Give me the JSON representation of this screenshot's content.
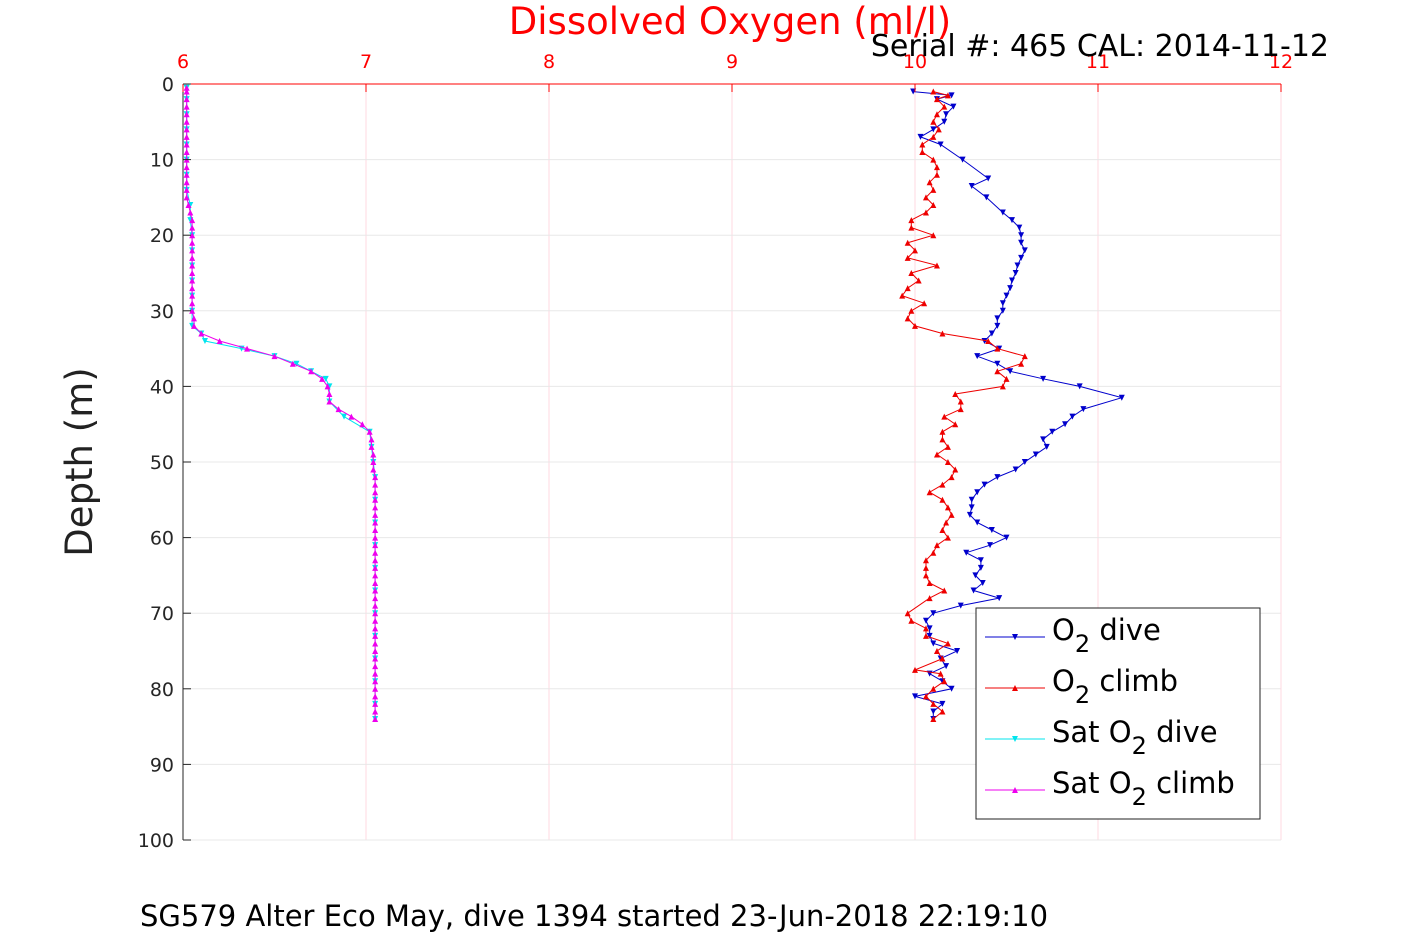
{
  "chart_data": {
    "type": "line",
    "title": "Dissolved Oxygen (ml/l)",
    "subtitle": "Serial #: 465  CAL: 2014-11-12",
    "caption": "SG579 Alter Eco May, dive 1394 started 23-Jun-2018 22:19:10",
    "ylabel": "Depth (m)",
    "xlim": [
      6,
      12
    ],
    "ylim": [
      0,
      100
    ],
    "y_reversed": true,
    "x_axis_position": "top",
    "xticks": [
      "6",
      "7",
      "8",
      "9",
      "10",
      "11",
      "12"
    ],
    "yticks": [
      "0",
      "10",
      "20",
      "30",
      "40",
      "50",
      "60",
      "70",
      "80",
      "90",
      "100"
    ],
    "grid": true,
    "legend_position": "bottom-right",
    "colors": {
      "title": "#ff0000",
      "x_axis": "#ff0000",
      "grid": "#e8e8e8",
      "grid_x": "#ffd8e0"
    },
    "series": [
      {
        "name": "O2 dive",
        "legend": {
          "prefix": "O",
          "sub": "2",
          "suffix": " dive"
        },
        "color": "#0000cc",
        "marker": "triangle-down",
        "points": [
          [
            9.99,
            1
          ],
          [
            10.2,
            1.5
          ],
          [
            10.12,
            2
          ],
          [
            10.21,
            3
          ],
          [
            10.17,
            4
          ],
          [
            10.16,
            5
          ],
          [
            10.1,
            6
          ],
          [
            10.03,
            7
          ],
          [
            10.14,
            8
          ],
          [
            10.26,
            10
          ],
          [
            10.4,
            12.5
          ],
          [
            10.31,
            13.5
          ],
          [
            10.39,
            15
          ],
          [
            10.48,
            17
          ],
          [
            10.53,
            18
          ],
          [
            10.57,
            19
          ],
          [
            10.58,
            20
          ],
          [
            10.58,
            21
          ],
          [
            10.6,
            22
          ],
          [
            10.58,
            23
          ],
          [
            10.56,
            24
          ],
          [
            10.55,
            25
          ],
          [
            10.53,
            26
          ],
          [
            10.52,
            27
          ],
          [
            10.5,
            28
          ],
          [
            10.48,
            29
          ],
          [
            10.48,
            30
          ],
          [
            10.45,
            31
          ],
          [
            10.45,
            32
          ],
          [
            10.42,
            33
          ],
          [
            10.38,
            34
          ],
          [
            10.46,
            35
          ],
          [
            10.34,
            36
          ],
          [
            10.45,
            37
          ],
          [
            10.52,
            38
          ],
          [
            10.7,
            39
          ],
          [
            10.9,
            40
          ],
          [
            11.13,
            41.5
          ],
          [
            10.92,
            43
          ],
          [
            10.86,
            44
          ],
          [
            10.82,
            45
          ],
          [
            10.75,
            46
          ],
          [
            10.7,
            47
          ],
          [
            10.72,
            48
          ],
          [
            10.66,
            49
          ],
          [
            10.6,
            50
          ],
          [
            10.55,
            51
          ],
          [
            10.45,
            52
          ],
          [
            10.38,
            53
          ],
          [
            10.34,
            54
          ],
          [
            10.31,
            55
          ],
          [
            10.31,
            56
          ],
          [
            10.3,
            57
          ],
          [
            10.34,
            58
          ],
          [
            10.42,
            59
          ],
          [
            10.5,
            60
          ],
          [
            10.41,
            61
          ],
          [
            10.28,
            62
          ],
          [
            10.36,
            63
          ],
          [
            10.36,
            64
          ],
          [
            10.33,
            65
          ],
          [
            10.37,
            66
          ],
          [
            10.32,
            67
          ],
          [
            10.46,
            68
          ],
          [
            10.25,
            69
          ],
          [
            10.1,
            70
          ],
          [
            10.06,
            71
          ],
          [
            10.08,
            72
          ],
          [
            10.08,
            73
          ],
          [
            10.1,
            74
          ],
          [
            10.23,
            75
          ],
          [
            10.14,
            76
          ],
          [
            10.17,
            77
          ],
          [
            10.08,
            78
          ],
          [
            10.15,
            79
          ],
          [
            10.2,
            80
          ],
          [
            10.0,
            81
          ],
          [
            10.15,
            82
          ],
          [
            10.1,
            83
          ],
          [
            10.1,
            84
          ]
        ]
      },
      {
        "name": "O2 climb",
        "legend": {
          "prefix": "O",
          "sub": "2",
          "suffix": " climb"
        },
        "color": "#ee0000",
        "marker": "triangle-up",
        "points": [
          [
            10.1,
            84
          ],
          [
            10.15,
            83
          ],
          [
            10.1,
            82
          ],
          [
            10.06,
            81
          ],
          [
            10.1,
            80
          ],
          [
            10.16,
            79
          ],
          [
            10.14,
            78
          ],
          [
            10.0,
            77.5
          ],
          [
            10.15,
            76
          ],
          [
            10.12,
            75
          ],
          [
            10.18,
            74
          ],
          [
            10.06,
            73
          ],
          [
            10.06,
            72
          ],
          [
            9.98,
            71
          ],
          [
            9.96,
            70
          ],
          [
            10.08,
            68
          ],
          [
            10.16,
            67
          ],
          [
            10.08,
            66
          ],
          [
            10.06,
            65
          ],
          [
            10.06,
            64
          ],
          [
            10.06,
            63
          ],
          [
            10.1,
            62
          ],
          [
            10.12,
            61
          ],
          [
            10.18,
            60
          ],
          [
            10.15,
            59
          ],
          [
            10.17,
            58
          ],
          [
            10.2,
            57
          ],
          [
            10.18,
            56
          ],
          [
            10.15,
            55
          ],
          [
            10.08,
            54
          ],
          [
            10.15,
            53
          ],
          [
            10.2,
            52
          ],
          [
            10.22,
            51
          ],
          [
            10.18,
            50
          ],
          [
            10.12,
            49
          ],
          [
            10.18,
            48
          ],
          [
            10.15,
            47
          ],
          [
            10.15,
            46
          ],
          [
            10.22,
            45
          ],
          [
            10.16,
            44
          ],
          [
            10.25,
            43
          ],
          [
            10.25,
            42
          ],
          [
            10.22,
            41
          ],
          [
            10.48,
            40
          ],
          [
            10.5,
            39
          ],
          [
            10.45,
            38
          ],
          [
            10.58,
            37
          ],
          [
            10.6,
            36
          ],
          [
            10.45,
            35
          ],
          [
            10.4,
            34
          ],
          [
            10.15,
            33
          ],
          [
            10.0,
            32
          ],
          [
            9.96,
            31
          ],
          [
            9.98,
            30
          ],
          [
            10.05,
            29
          ],
          [
            9.93,
            28
          ],
          [
            9.96,
            27
          ],
          [
            10.02,
            26
          ],
          [
            9.98,
            25
          ],
          [
            10.12,
            24
          ],
          [
            9.96,
            23
          ],
          [
            10.0,
            22
          ],
          [
            9.96,
            21
          ],
          [
            10.1,
            20
          ],
          [
            9.98,
            19
          ],
          [
            9.98,
            18
          ],
          [
            10.06,
            17
          ],
          [
            10.1,
            16
          ],
          [
            10.06,
            15
          ],
          [
            10.1,
            14
          ],
          [
            10.08,
            13
          ],
          [
            10.12,
            12
          ],
          [
            10.12,
            11
          ],
          [
            10.1,
            10
          ],
          [
            10.04,
            9
          ],
          [
            10.04,
            8
          ],
          [
            10.1,
            7
          ],
          [
            10.13,
            6
          ],
          [
            10.1,
            5
          ],
          [
            10.12,
            4
          ],
          [
            10.16,
            3
          ],
          [
            10.12,
            2
          ],
          [
            10.18,
            1.5
          ],
          [
            10.1,
            1
          ]
        ]
      },
      {
        "name": "Sat O2 dive",
        "legend": {
          "prefix": "Sat O",
          "sub": "2",
          "suffix": " dive"
        },
        "color": "#00e5ee",
        "marker": "triangle-down",
        "points": [
          [
            6.02,
            0.5
          ],
          [
            6.02,
            2
          ],
          [
            6.02,
            4
          ],
          [
            6.02,
            6
          ],
          [
            6.02,
            8
          ],
          [
            6.02,
            10
          ],
          [
            6.02,
            12
          ],
          [
            6.02,
            14
          ],
          [
            6.04,
            16
          ],
          [
            6.04,
            18
          ],
          [
            6.05,
            20
          ],
          [
            6.05,
            22
          ],
          [
            6.05,
            24
          ],
          [
            6.05,
            26
          ],
          [
            6.05,
            28
          ],
          [
            6.05,
            30
          ],
          [
            6.05,
            32
          ],
          [
            6.1,
            33
          ],
          [
            6.12,
            34
          ],
          [
            6.32,
            35
          ],
          [
            6.5,
            36
          ],
          [
            6.62,
            37
          ],
          [
            6.7,
            38
          ],
          [
            6.78,
            39
          ],
          [
            6.8,
            40
          ],
          [
            6.8,
            42
          ],
          [
            6.88,
            44
          ],
          [
            7.02,
            46
          ],
          [
            7.03,
            48
          ],
          [
            7.04,
            50
          ],
          [
            7.05,
            52
          ],
          [
            7.05,
            55
          ],
          [
            7.05,
            58
          ],
          [
            7.05,
            61
          ],
          [
            7.05,
            64
          ],
          [
            7.05,
            67
          ],
          [
            7.05,
            70
          ],
          [
            7.05,
            73
          ],
          [
            7.05,
            76
          ],
          [
            7.05,
            79
          ],
          [
            7.05,
            82
          ],
          [
            7.05,
            84
          ]
        ]
      },
      {
        "name": "Sat O2 climb",
        "legend": {
          "prefix": "Sat O",
          "sub": "2",
          "suffix": " climb"
        },
        "color": "#ee00ee",
        "marker": "triangle-up",
        "points": [
          [
            7.05,
            84
          ],
          [
            7.05,
            83
          ],
          [
            7.05,
            82
          ],
          [
            7.05,
            81
          ],
          [
            7.05,
            80
          ],
          [
            7.05,
            79
          ],
          [
            7.05,
            78
          ],
          [
            7.05,
            77
          ],
          [
            7.05,
            76
          ],
          [
            7.05,
            75
          ],
          [
            7.05,
            74
          ],
          [
            7.05,
            73
          ],
          [
            7.05,
            72
          ],
          [
            7.05,
            71
          ],
          [
            7.05,
            70
          ],
          [
            7.05,
            69
          ],
          [
            7.05,
            68
          ],
          [
            7.05,
            67
          ],
          [
            7.05,
            66
          ],
          [
            7.05,
            65
          ],
          [
            7.05,
            64
          ],
          [
            7.05,
            63
          ],
          [
            7.05,
            62
          ],
          [
            7.05,
            61
          ],
          [
            7.05,
            60
          ],
          [
            7.05,
            59
          ],
          [
            7.05,
            58
          ],
          [
            7.05,
            57
          ],
          [
            7.05,
            56
          ],
          [
            7.05,
            55
          ],
          [
            7.05,
            54
          ],
          [
            7.05,
            53
          ],
          [
            7.05,
            52
          ],
          [
            7.04,
            51
          ],
          [
            7.04,
            50
          ],
          [
            7.04,
            49
          ],
          [
            7.03,
            48
          ],
          [
            7.03,
            47
          ],
          [
            7.02,
            46
          ],
          [
            6.98,
            45
          ],
          [
            6.92,
            44
          ],
          [
            6.85,
            43
          ],
          [
            6.8,
            42
          ],
          [
            6.8,
            41
          ],
          [
            6.79,
            40
          ],
          [
            6.76,
            39
          ],
          [
            6.7,
            38
          ],
          [
            6.6,
            37
          ],
          [
            6.5,
            36
          ],
          [
            6.35,
            35
          ],
          [
            6.2,
            34
          ],
          [
            6.1,
            33
          ],
          [
            6.06,
            32
          ],
          [
            6.06,
            31
          ],
          [
            6.05,
            30
          ],
          [
            6.05,
            29
          ],
          [
            6.05,
            28
          ],
          [
            6.05,
            27
          ],
          [
            6.05,
            26
          ],
          [
            6.05,
            25
          ],
          [
            6.05,
            24
          ],
          [
            6.05,
            23
          ],
          [
            6.05,
            22
          ],
          [
            6.05,
            21
          ],
          [
            6.05,
            20
          ],
          [
            6.05,
            19
          ],
          [
            6.05,
            18
          ],
          [
            6.04,
            17
          ],
          [
            6.03,
            16
          ],
          [
            6.02,
            15
          ],
          [
            6.02,
            14
          ],
          [
            6.02,
            13
          ],
          [
            6.02,
            12
          ],
          [
            6.02,
            11
          ],
          [
            6.02,
            10
          ],
          [
            6.02,
            9
          ],
          [
            6.02,
            8
          ],
          [
            6.02,
            7
          ],
          [
            6.02,
            6
          ],
          [
            6.02,
            5
          ],
          [
            6.02,
            4
          ],
          [
            6.02,
            3
          ],
          [
            6.02,
            2
          ],
          [
            6.02,
            1
          ],
          [
            6.02,
            0.5
          ]
        ]
      }
    ]
  }
}
